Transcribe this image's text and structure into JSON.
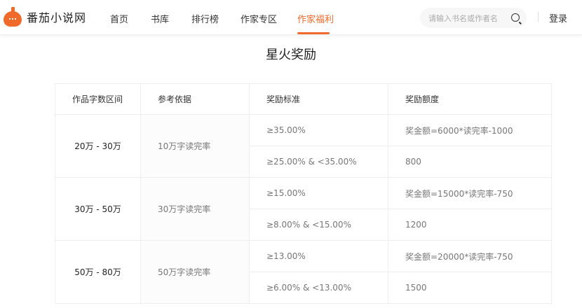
{
  "header": {
    "logo_text": "番茄小说网",
    "nav": [
      {
        "label": "首页"
      },
      {
        "label": "书库"
      },
      {
        "label": "排行榜"
      },
      {
        "label": "作家专区"
      },
      {
        "label": "作家福利",
        "active": true
      }
    ],
    "search_placeholder": "请输入书名或作者名",
    "login": "登录",
    "accent": "#f06a2b"
  },
  "page_title": "星火奖励",
  "table": {
    "headers": [
      "作品字数区间",
      "参考依据",
      "奖励标准",
      "奖励额度"
    ],
    "groups": [
      {
        "range": "20万 - 30万",
        "basis": "10万字读完率",
        "rows": [
          {
            "std": "≥35.00%",
            "amt": "奖金额=6000*读完率-1000"
          },
          {
            "std": "≥25.00% & <35.00%",
            "amt": "800"
          }
        ]
      },
      {
        "range": "30万 - 50万",
        "basis": "30万字读完率",
        "rows": [
          {
            "std": "≥15.00%",
            "amt": "奖金额=15000*读完率-750"
          },
          {
            "std": "≥8.00% & <15.00%",
            "amt": "1200"
          }
        ]
      },
      {
        "range": "50万 - 80万",
        "basis": "50万字读完率",
        "rows": [
          {
            "std": "≥13.00%",
            "amt": "奖金额=20000*读完率-750"
          },
          {
            "std": "≥6.00% & <13.00%",
            "amt": "1500"
          }
        ]
      }
    ]
  }
}
